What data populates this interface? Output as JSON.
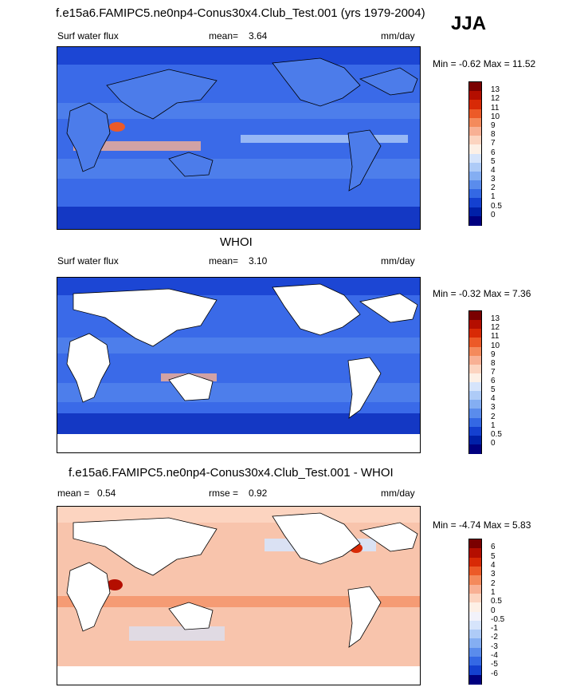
{
  "season": "JJA",
  "panels": [
    {
      "title": "f.e15a6.FAMIPC5.ne0np4-Conus30x4.Club_Test.001 (yrs 1979-2004)",
      "left_label": "Surf water flux",
      "mid_label": "mean=",
      "mid_value": "3.64",
      "right_label": "mm/day",
      "minmax": "Min =  -0.62 Max =  11.52",
      "levels": [
        "13",
        "12",
        "11",
        "10",
        "9",
        "8",
        "7",
        "6",
        "5",
        "4",
        "3",
        "2",
        "1",
        "0.5",
        "0"
      ],
      "colors": [
        "#7a0000",
        "#b40e00",
        "#d82a06",
        "#ec5a28",
        "#f48a5c",
        "#f8b094",
        "#fcd4c0",
        "#fdf0e6",
        "#d6e4fb",
        "#aecbf7",
        "#84aef2",
        "#5a8cec",
        "#3468e4",
        "#1440d0",
        "#0020a8",
        "#000080"
      ],
      "ocean": "#3a6ae8",
      "land_fill": "#4c7cea"
    },
    {
      "title": "WHOI",
      "left_label": "Surf water flux",
      "mid_label": "mean=",
      "mid_value": "3.10",
      "right_label": "mm/day",
      "minmax": "Min =  -0.32 Max =   7.36",
      "levels": [
        "13",
        "12",
        "11",
        "10",
        "9",
        "8",
        "7",
        "6",
        "5",
        "4",
        "3",
        "2",
        "1",
        "0.5",
        "0"
      ],
      "colors": [
        "#7a0000",
        "#b40e00",
        "#d82a06",
        "#ec5a28",
        "#f48a5c",
        "#f8b094",
        "#fcd4c0",
        "#fdf0e6",
        "#d6e4fb",
        "#aecbf7",
        "#84aef2",
        "#5a8cec",
        "#3468e4",
        "#1440d0",
        "#0020a8",
        "#000080"
      ],
      "ocean": "#3a6ae8",
      "land_fill": "#ffffff"
    },
    {
      "title": "f.e15a6.FAMIPC5.ne0np4-Conus30x4.Club_Test.001 - WHOI",
      "left_label": "mean =",
      "left_value": "0.54",
      "mid_label": "rmse =",
      "mid_value": "0.92",
      "right_label": "mm/day",
      "minmax": "Min =  -4.74 Max =   5.83",
      "levels": [
        "6",
        "5",
        "4",
        "3",
        "2",
        "1",
        "0.5",
        "0",
        "-0.5",
        "-1",
        "-2",
        "-3",
        "-4",
        "-5",
        "-6"
      ],
      "colors": [
        "#7a0000",
        "#b40e00",
        "#d82a06",
        "#ec5a28",
        "#f48a5c",
        "#f8b094",
        "#fcd4c0",
        "#fdf0e6",
        "#f2f2fa",
        "#d6e4fb",
        "#aecbf7",
        "#84aef2",
        "#5a8cec",
        "#3468e4",
        "#1440d0",
        "#000080"
      ],
      "ocean": "#f8c4ac",
      "land_fill": "#ffffff"
    }
  ]
}
